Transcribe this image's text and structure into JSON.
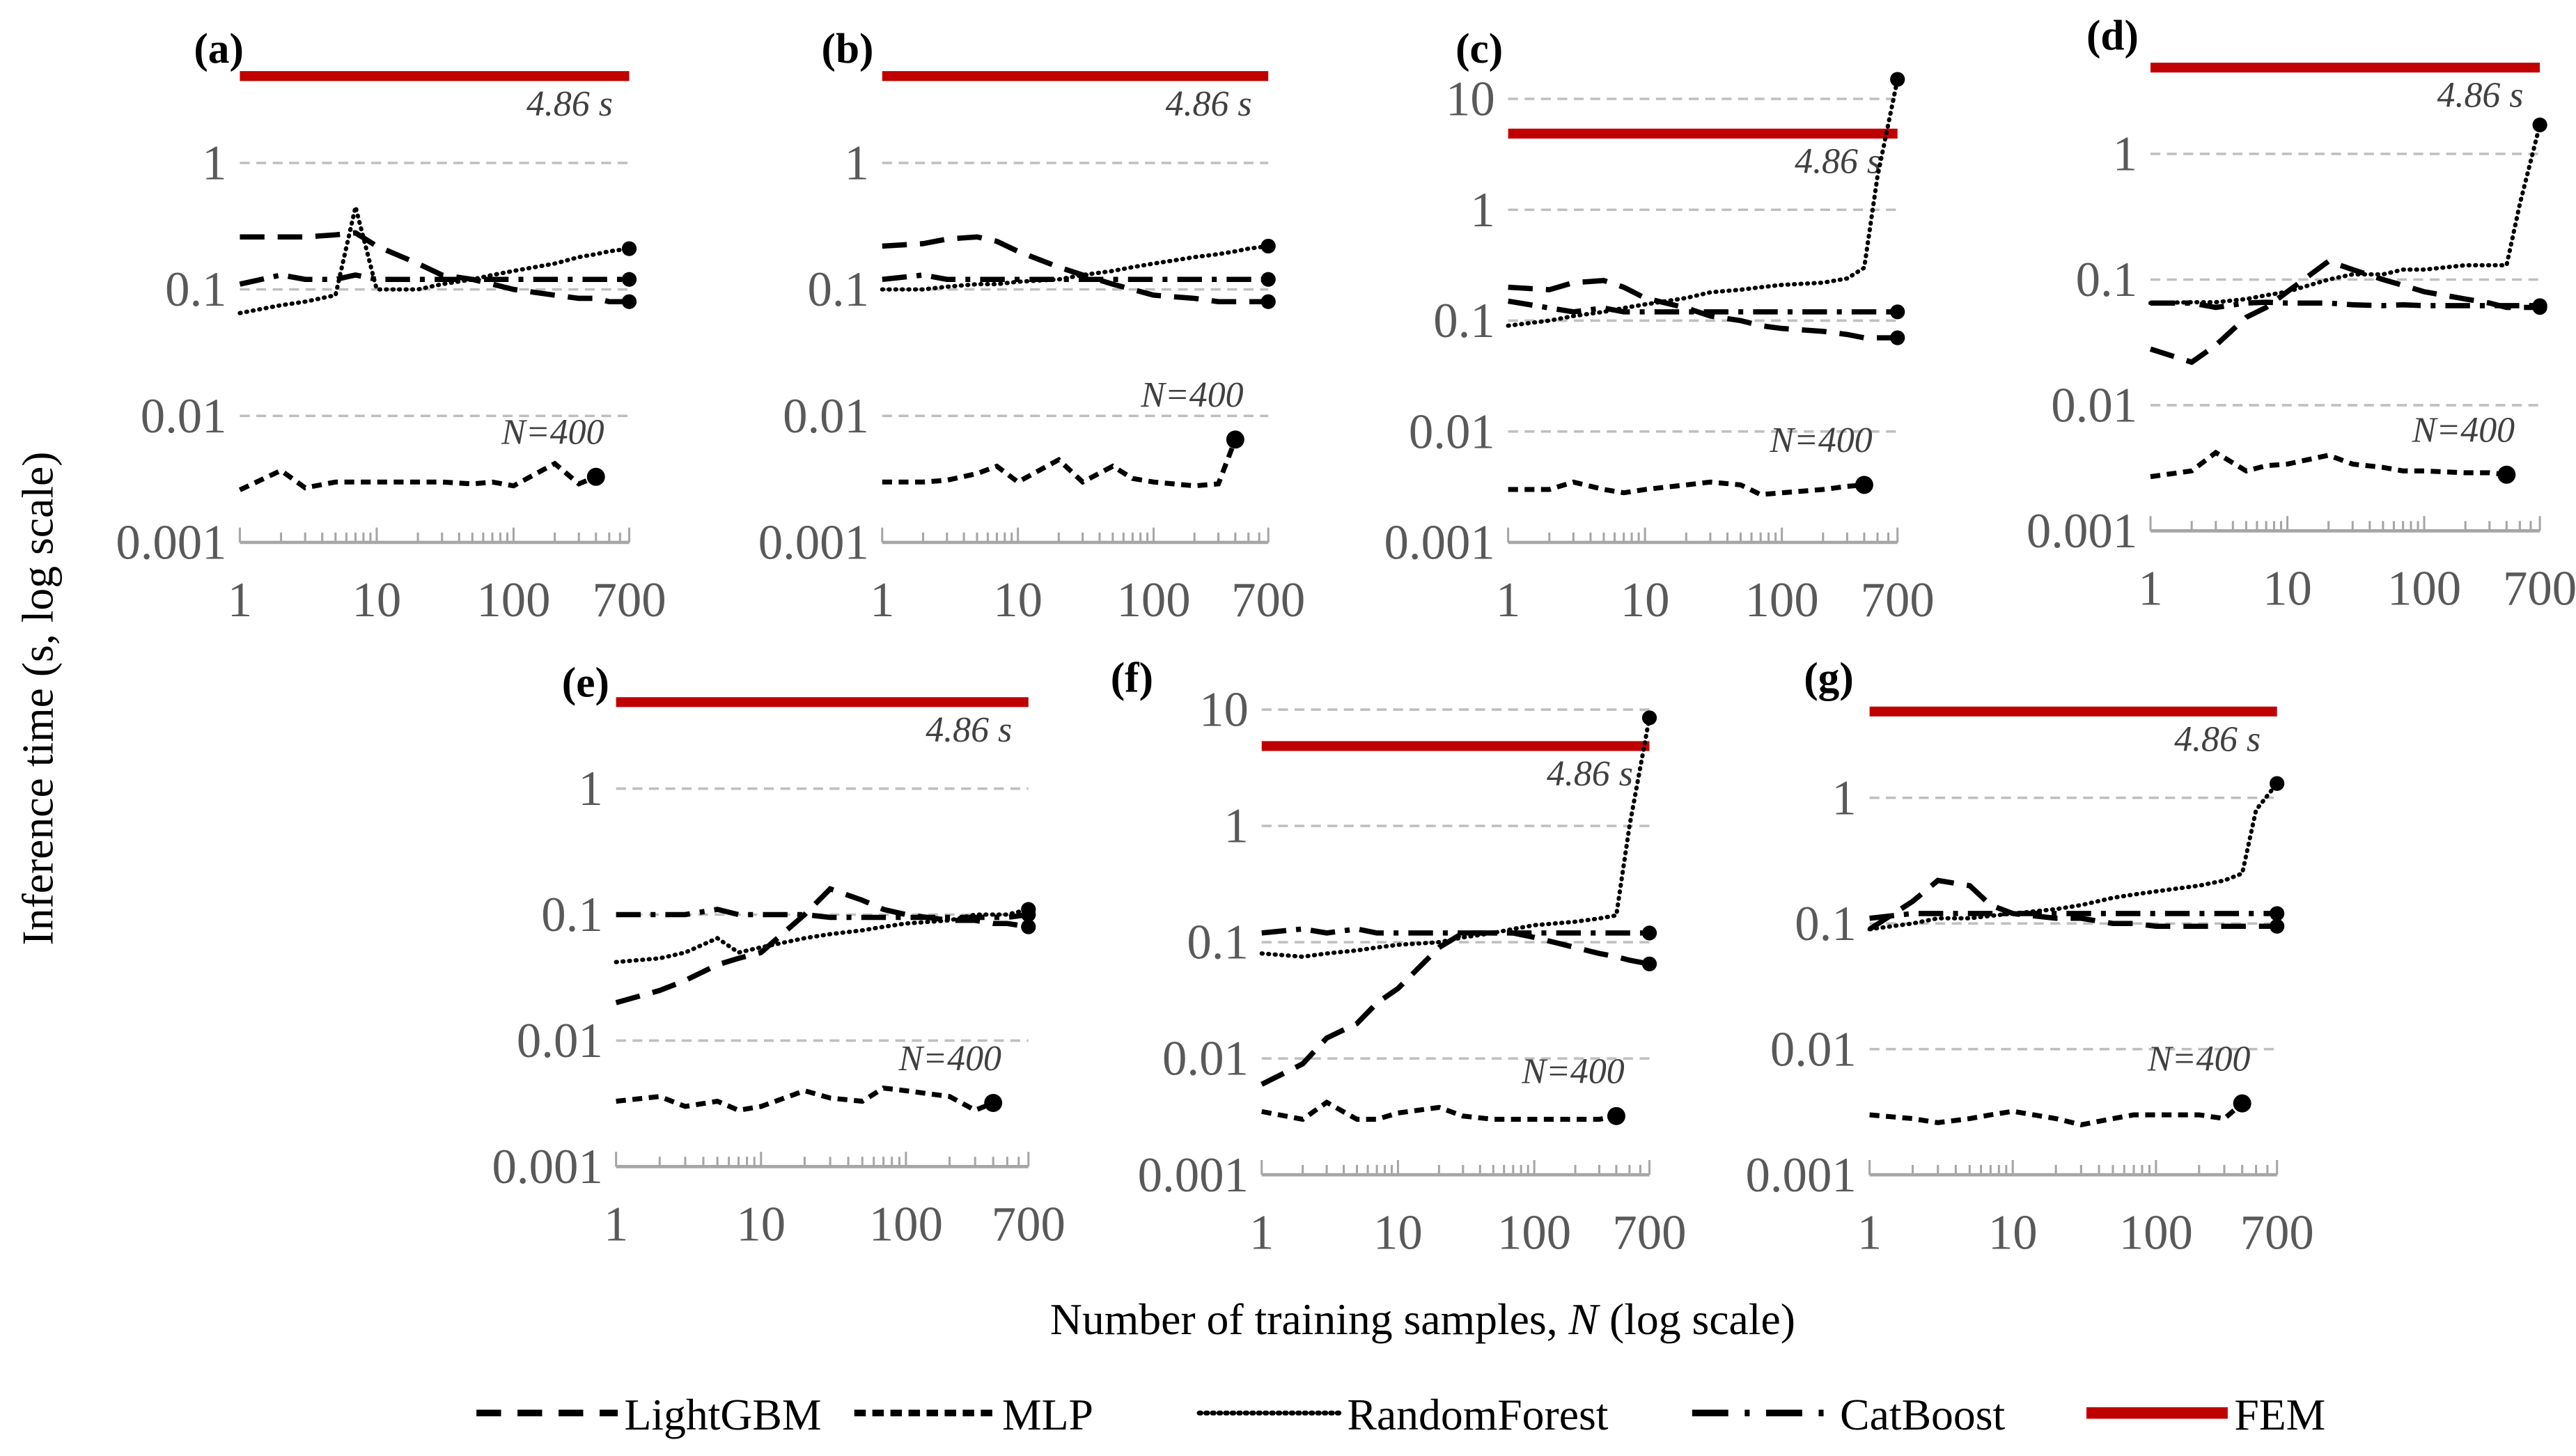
{
  "chart_data": {
    "type": "line",
    "title": "",
    "xlabel": "Number of training samples, N (log scale)",
    "xlabel_parts": [
      "Number of training samples, ",
      "N",
      " (log scale)"
    ],
    "ylabel": "Inference time (s, log scale)",
    "x": [
      1,
      2,
      3,
      5,
      7,
      10,
      20,
      30,
      50,
      70,
      100,
      200,
      300,
      400,
      500,
      700
    ],
    "xticks": [
      "1",
      "10",
      "100",
      "700"
    ],
    "xtick_values": [
      1,
      10,
      100,
      700
    ],
    "fem_value": 4.86,
    "fem_label": "4.86 s",
    "mlp_label": "N=400",
    "legend": [
      "LightGBM",
      "MLP",
      "RandomForest",
      "CatBoost",
      "FEM"
    ],
    "legend_placement": "bottom",
    "colors": {
      "FEM": "#c00000",
      "models": "#000000",
      "grid": "#bfbfbf",
      "axis": "#a6a6a6"
    },
    "panels": [
      {
        "label": "(a)",
        "ylim": [
          0.001,
          5
        ],
        "yticks": [
          "0.001",
          "0.01",
          "0.1",
          "1"
        ],
        "ytick_values": [
          0.001,
          0.01,
          0.1,
          1
        ],
        "series": [
          {
            "name": "LightGBM",
            "values": [
              0.26,
              0.26,
              0.26,
              0.27,
              0.28,
              0.22,
              0.16,
              0.13,
              0.12,
              0.11,
              0.1,
              0.09,
              0.085,
              0.085,
              0.08,
              0.08
            ]
          },
          {
            "name": "MLP",
            "values": [
              0.0026,
              0.0037,
              0.0027,
              0.003,
              0.003,
              0.003,
              0.003,
              0.003,
              0.0029,
              0.003,
              0.0028,
              0.0042,
              0.0029,
              0.0033,
              null,
              null
            ]
          },
          {
            "name": "RandomForest",
            "values": [
              0.065,
              0.075,
              0.08,
              0.09,
              0.45,
              0.1,
              0.1,
              0.11,
              0.12,
              0.13,
              0.14,
              0.16,
              0.18,
              0.19,
              0.2,
              0.21
            ]
          },
          {
            "name": "CatBoost",
            "values": [
              0.11,
              0.13,
              0.12,
              0.12,
              0.13,
              0.12,
              0.12,
              0.12,
              0.12,
              0.12,
              0.12,
              0.12,
              0.12,
              0.12,
              0.12,
              0.12
            ]
          }
        ]
      },
      {
        "label": "(b)",
        "ylim": [
          0.001,
          5
        ],
        "yticks": [
          "0.001",
          "0.01",
          "0.1",
          "1"
        ],
        "ytick_values": [
          0.001,
          0.01,
          0.1,
          1
        ],
        "series": [
          {
            "name": "LightGBM",
            "values": [
              0.22,
              0.23,
              0.25,
              0.26,
              0.24,
              0.2,
              0.15,
              0.13,
              0.11,
              0.1,
              0.09,
              0.085,
              0.08,
              0.08,
              0.08,
              0.08
            ]
          },
          {
            "name": "MLP",
            "values": [
              0.003,
              0.003,
              0.0031,
              0.0035,
              0.004,
              0.003,
              0.0045,
              0.003,
              0.004,
              0.0032,
              0.003,
              0.0028,
              0.0029,
              0.0065,
              null,
              null
            ]
          },
          {
            "name": "RandomForest",
            "values": [
              0.1,
              0.1,
              0.105,
              0.11,
              0.11,
              0.115,
              0.12,
              0.13,
              0.14,
              0.15,
              0.16,
              0.18,
              0.19,
              0.2,
              0.21,
              0.22
            ]
          },
          {
            "name": "CatBoost",
            "values": [
              0.12,
              0.13,
              0.12,
              0.12,
              0.12,
              0.12,
              0.12,
              0.12,
              0.12,
              0.12,
              0.12,
              0.12,
              0.12,
              0.12,
              0.12,
              0.12
            ]
          }
        ]
      },
      {
        "label": "(c)",
        "ylim": [
          0.001,
          10
        ],
        "yticks": [
          "0.001",
          "0.01",
          "0.1",
          "1",
          "10"
        ],
        "ytick_values": [
          0.001,
          0.01,
          0.1,
          1,
          10
        ],
        "series": [
          {
            "name": "LightGBM",
            "values": [
              0.2,
              0.19,
              0.22,
              0.23,
              0.2,
              0.16,
              0.13,
              0.11,
              0.1,
              0.09,
              0.085,
              0.08,
              0.075,
              0.07,
              0.07,
              0.07
            ]
          },
          {
            "name": "MLP",
            "values": [
              0.003,
              0.003,
              0.0035,
              0.003,
              0.0028,
              0.003,
              0.0033,
              0.0035,
              0.0033,
              0.0027,
              0.0028,
              0.003,
              0.0032,
              0.0033,
              null,
              null
            ]
          },
          {
            "name": "RandomForest",
            "values": [
              0.09,
              0.1,
              0.11,
              0.12,
              0.13,
              0.14,
              0.16,
              0.18,
              0.19,
              0.2,
              0.21,
              0.22,
              0.24,
              0.3,
              2,
              15
            ]
          },
          {
            "name": "CatBoost",
            "values": [
              0.15,
              0.13,
              0.12,
              0.13,
              0.12,
              0.12,
              0.12,
              0.12,
              0.12,
              0.12,
              0.12,
              0.12,
              0.12,
              0.12,
              0.12,
              0.12
            ]
          }
        ]
      },
      {
        "label": "(d)",
        "ylim": [
          0.001,
          5
        ],
        "yticks": [
          "0.001",
          "0.01",
          "0.1",
          "1"
        ],
        "ytick_values": [
          0.001,
          0.01,
          0.1,
          1
        ],
        "series": [
          {
            "name": "LightGBM",
            "values": [
              0.028,
              0.022,
              0.03,
              0.05,
              0.06,
              0.08,
              0.14,
              0.12,
              0.1,
              0.09,
              0.08,
              0.07,
              0.065,
              0.06,
              0.06,
              0.06
            ]
          },
          {
            "name": "MLP",
            "values": [
              0.0027,
              0.003,
              0.0042,
              0.003,
              0.0033,
              0.0034,
              0.004,
              0.0034,
              0.0032,
              0.003,
              0.003,
              0.0029,
              0.0029,
              0.0028,
              null,
              null
            ]
          },
          {
            "name": "RandomForest",
            "values": [
              0.065,
              0.066,
              0.066,
              0.07,
              0.075,
              0.08,
              0.1,
              0.11,
              0.11,
              0.12,
              0.12,
              0.13,
              0.13,
              0.13,
              0.4,
              1.7
            ]
          },
          {
            "name": "CatBoost",
            "values": [
              0.065,
              0.065,
              0.06,
              0.065,
              0.066,
              0.065,
              0.065,
              0.063,
              0.062,
              0.063,
              0.062,
              0.062,
              0.062,
              0.062,
              0.062,
              0.062
            ]
          }
        ]
      },
      {
        "label": "(e)",
        "ylim": [
          0.001,
          5
        ],
        "yticks": [
          "0.001",
          "0.01",
          "0.1",
          "1"
        ],
        "ytick_values": [
          0.001,
          0.01,
          0.1,
          1
        ],
        "series": [
          {
            "name": "LightGBM",
            "values": [
              0.02,
              0.025,
              0.03,
              0.04,
              0.045,
              0.05,
              0.1,
              0.16,
              0.13,
              0.11,
              0.1,
              0.09,
              0.09,
              0.085,
              0.085,
              0.08
            ]
          },
          {
            "name": "MLP",
            "values": [
              0.0033,
              0.0036,
              0.003,
              0.0033,
              0.0028,
              0.003,
              0.004,
              0.0035,
              0.0033,
              0.0042,
              0.004,
              0.0036,
              0.0028,
              0.0032,
              null,
              null
            ]
          },
          {
            "name": "RandomForest",
            "values": [
              0.042,
              0.045,
              0.05,
              0.065,
              0.05,
              0.055,
              0.065,
              0.07,
              0.075,
              0.08,
              0.085,
              0.09,
              0.1,
              0.1,
              0.1,
              0.11
            ]
          },
          {
            "name": "CatBoost",
            "values": [
              0.1,
              0.1,
              0.1,
              0.11,
              0.1,
              0.1,
              0.1,
              0.095,
              0.095,
              0.095,
              0.095,
              0.095,
              0.095,
              0.095,
              0.095,
              0.1
            ]
          }
        ]
      },
      {
        "label": "(f)",
        "ylim": [
          0.001,
          10
        ],
        "yticks": [
          "0.001",
          "0.01",
          "0.1",
          "1",
          "10"
        ],
        "ytick_values": [
          0.001,
          0.01,
          0.1,
          1,
          10
        ],
        "series": [
          {
            "name": "LightGBM",
            "values": [
              0.006,
              0.009,
              0.015,
              0.02,
              0.03,
              0.04,
              0.09,
              0.12,
              0.12,
              0.12,
              0.11,
              0.09,
              0.08,
              0.075,
              0.07,
              0.065
            ]
          },
          {
            "name": "MLP",
            "values": [
              0.0035,
              0.003,
              0.0042,
              0.003,
              0.003,
              0.0034,
              0.0038,
              0.0032,
              0.003,
              0.003,
              0.003,
              0.003,
              0.003,
              0.0032,
              null,
              null
            ]
          },
          {
            "name": "RandomForest",
            "values": [
              0.08,
              0.075,
              0.08,
              0.085,
              0.09,
              0.095,
              0.1,
              0.11,
              0.12,
              0.13,
              0.14,
              0.15,
              0.16,
              0.17,
              1,
              8.5
            ]
          },
          {
            "name": "CatBoost",
            "values": [
              0.12,
              0.13,
              0.12,
              0.13,
              0.12,
              0.12,
              0.12,
              0.12,
              0.12,
              0.12,
              0.12,
              0.12,
              0.12,
              0.12,
              0.12,
              0.12
            ]
          }
        ]
      },
      {
        "label": "(g)",
        "ylim": [
          0.001,
          5
        ],
        "yticks": [
          "0.001",
          "0.01",
          "0.1",
          "1"
        ],
        "ytick_values": [
          0.001,
          0.01,
          0.1,
          1
        ],
        "series": [
          {
            "name": "LightGBM",
            "values": [
              0.09,
              0.15,
              0.22,
              0.2,
              0.14,
              0.12,
              0.11,
              0.11,
              0.1,
              0.1,
              0.095,
              0.095,
              0.095,
              0.095,
              0.095,
              0.095
            ]
          },
          {
            "name": "MLP",
            "values": [
              0.003,
              0.0028,
              0.0026,
              0.0028,
              0.003,
              0.0032,
              0.0028,
              0.0025,
              0.0028,
              0.003,
              0.003,
              0.003,
              0.0028,
              0.0037,
              null,
              null
            ]
          },
          {
            "name": "RandomForest",
            "values": [
              0.09,
              0.1,
              0.11,
              0.11,
              0.115,
              0.12,
              0.13,
              0.14,
              0.16,
              0.17,
              0.18,
              0.2,
              0.22,
              0.25,
              0.8,
              1.3
            ]
          },
          {
            "name": "CatBoost",
            "values": [
              0.11,
              0.12,
              0.12,
              0.12,
              0.12,
              0.12,
              0.12,
              0.12,
              0.12,
              0.12,
              0.12,
              0.12,
              0.12,
              0.12,
              0.12,
              0.12
            ]
          }
        ]
      }
    ]
  }
}
